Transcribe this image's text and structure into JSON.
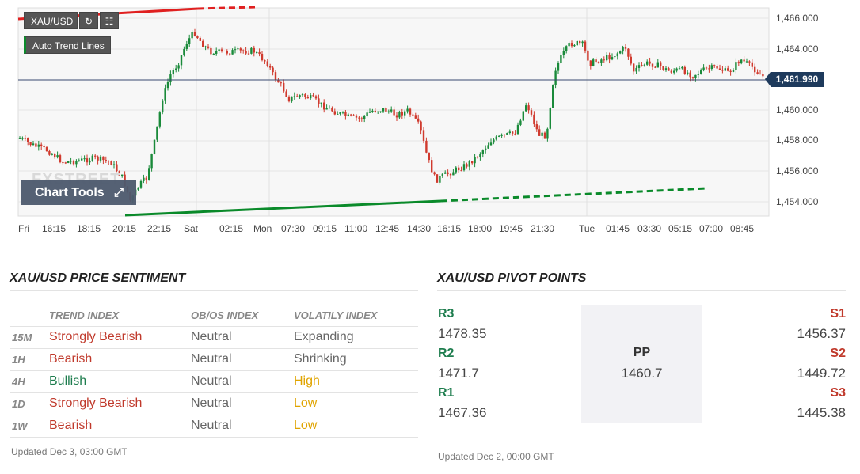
{
  "chart": {
    "symbol": "XAU/USD",
    "refresh_icon": "refresh-icon",
    "bars_icon": "bars-icon",
    "auto_trend_label": "Auto Trend Lines",
    "chart_tools_label": "Chart Tools",
    "watermark": "FXSTREET",
    "current_price": "1,461.990",
    "price_labels": [
      "1,466.000",
      "1,464.000",
      "1,462.000",
      "1,460.000",
      "1,458.000",
      "1,456.000",
      "1,454.000"
    ],
    "time_labels": [
      "Fri",
      "16:15",
      "18:15",
      "20:15",
      "22:15",
      "Sat",
      "02:15",
      "Mon",
      "07:30",
      "09:15",
      "11:00",
      "12:45",
      "14:30",
      "16:15",
      "18:00",
      "19:45",
      "21:30",
      "Tue",
      "01:45",
      "03:30",
      "05:15",
      "07:00",
      "08:45"
    ],
    "colors": {
      "up": "#1a8a3a",
      "down": "#d03a2e",
      "trend_up": "#0a8a2a",
      "trend_down": "#e02020",
      "price_line": "#3a4a70"
    }
  },
  "sentiment": {
    "title": "XAU/USD PRICE SENTIMENT",
    "headers": {
      "tf": "",
      "trend": "TREND INDEX",
      "obos": "OB/OS INDEX",
      "volatility": "VOLATILY INDEX"
    },
    "rows": [
      {
        "tf": "15M",
        "trend": "Strongly Bearish",
        "trend_color": "red",
        "obos": "Neutral",
        "volatility": "Expanding",
        "vol_color": "gray"
      },
      {
        "tf": "1H",
        "trend": "Bearish",
        "trend_color": "red",
        "obos": "Neutral",
        "volatility": "Shrinking",
        "vol_color": "gray"
      },
      {
        "tf": "4H",
        "trend": "Bullish",
        "trend_color": "green",
        "obos": "Neutral",
        "volatility": "High",
        "vol_color": "orange"
      },
      {
        "tf": "1D",
        "trend": "Strongly Bearish",
        "trend_color": "red",
        "obos": "Neutral",
        "volatility": "Low",
        "vol_color": "orange"
      },
      {
        "tf": "1W",
        "trend": "Bearish",
        "trend_color": "red",
        "obos": "Neutral",
        "volatility": "Low",
        "vol_color": "orange"
      }
    ],
    "updated": "Updated Dec 3, 03:00 GMT"
  },
  "pivots": {
    "title": "XAU/USD PIVOT POINTS",
    "r3_label": "R3",
    "r3": "1478.35",
    "r2_label": "R2",
    "r2": "1471.7",
    "r1_label": "R1",
    "r1": "1467.36",
    "pp_label": "PP",
    "pp": "1460.7",
    "s1_label": "S1",
    "s1": "1456.37",
    "s2_label": "S2",
    "s2": "1449.72",
    "s3_label": "S3",
    "s3": "1445.38",
    "updated": "Updated Dec 2, 00:00 GMT",
    "colors": {
      "resistance": "#1e7d4e",
      "support": "#c0392b"
    }
  }
}
